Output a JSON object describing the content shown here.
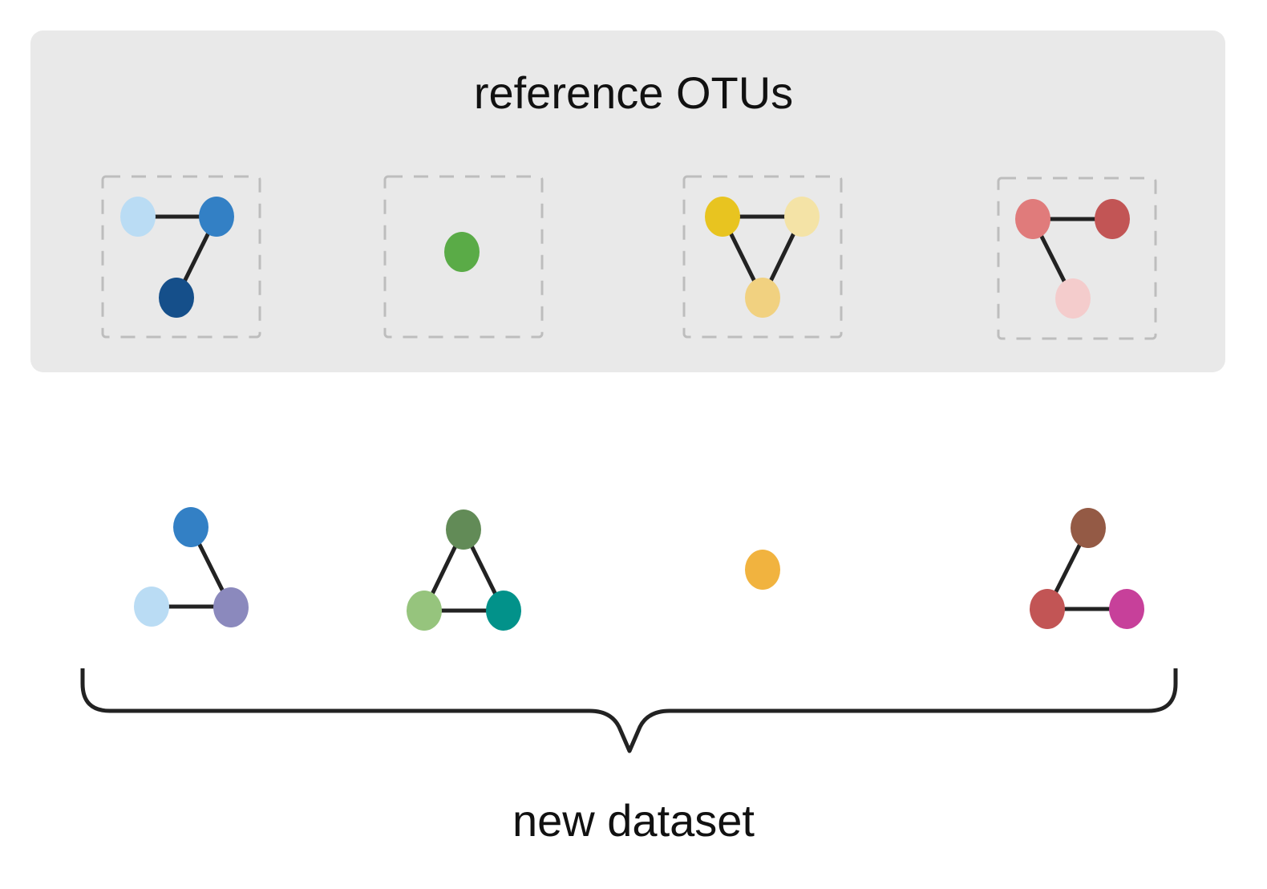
{
  "reference_panel": {
    "title": "reference OTUs"
  },
  "new_dataset": {
    "title": "new dataset"
  },
  "colors": {
    "panel_background": "#e9e9e9",
    "edge": "#222222",
    "dashed_box": "#bdbdbd",
    "text": "#111111"
  },
  "reference_clusters": [
    {
      "name": "blue-cluster",
      "nodes": [
        {
          "color": "#badcf4"
        },
        {
          "color": "#3380c5"
        },
        {
          "color": "#154f8a"
        }
      ]
    },
    {
      "name": "green-cluster",
      "nodes": [
        {
          "color": "#5aab47"
        }
      ]
    },
    {
      "name": "yellow-cluster",
      "nodes": [
        {
          "color": "#e8c420"
        },
        {
          "color": "#f4e3a6"
        },
        {
          "color": "#f1d180"
        }
      ]
    },
    {
      "name": "red-cluster",
      "nodes": [
        {
          "color": "#e07b7b"
        },
        {
          "color": "#c25555"
        },
        {
          "color": "#f4cccc"
        }
      ]
    }
  ],
  "dataset_clusters": [
    {
      "name": "dataset-cluster-1",
      "nodes": [
        {
          "color": "#3380c5"
        },
        {
          "color": "#badcf4"
        },
        {
          "color": "#8b89bd"
        }
      ]
    },
    {
      "name": "dataset-cluster-2",
      "nodes": [
        {
          "color": "#628b57"
        },
        {
          "color": "#96c47d"
        },
        {
          "color": "#02928a"
        }
      ]
    },
    {
      "name": "dataset-cluster-3",
      "nodes": [
        {
          "color": "#f1b33f"
        }
      ]
    },
    {
      "name": "dataset-cluster-4",
      "nodes": [
        {
          "color": "#945a45"
        },
        {
          "color": "#c25555"
        },
        {
          "color": "#c7409a"
        }
      ]
    }
  ]
}
